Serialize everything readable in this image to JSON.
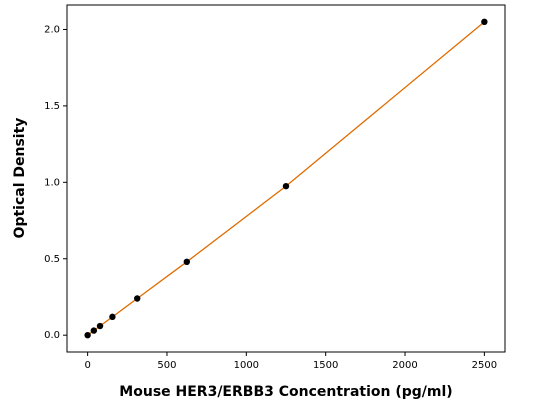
{
  "chart_data": {
    "type": "scatter",
    "x_label": "Mouse HER3/ERBB3 Concentration (pg/ml)",
    "y_label": "Optical Density",
    "series": [
      {
        "x": [
          0,
          39.06,
          78.13,
          156.25,
          312.5,
          625,
          1250,
          2500
        ],
        "values": [
          0.0,
          0.03,
          0.06,
          0.12,
          0.24,
          0.48,
          0.975,
          2.05
        ],
        "color": "#000000",
        "line_color": "#e06c00"
      }
    ],
    "xlim": [
      -130,
      2630
    ],
    "ylim": [
      -0.11,
      2.16
    ],
    "xticks": [
      0,
      500,
      1000,
      1500,
      2000,
      2500
    ],
    "yticks": [
      {
        "value": 0,
        "label": "0.0"
      },
      0.5,
      {
        "value": 1,
        "label": "1.0"
      },
      1.5,
      {
        "value": 2,
        "label": "2.0"
      }
    ]
  }
}
